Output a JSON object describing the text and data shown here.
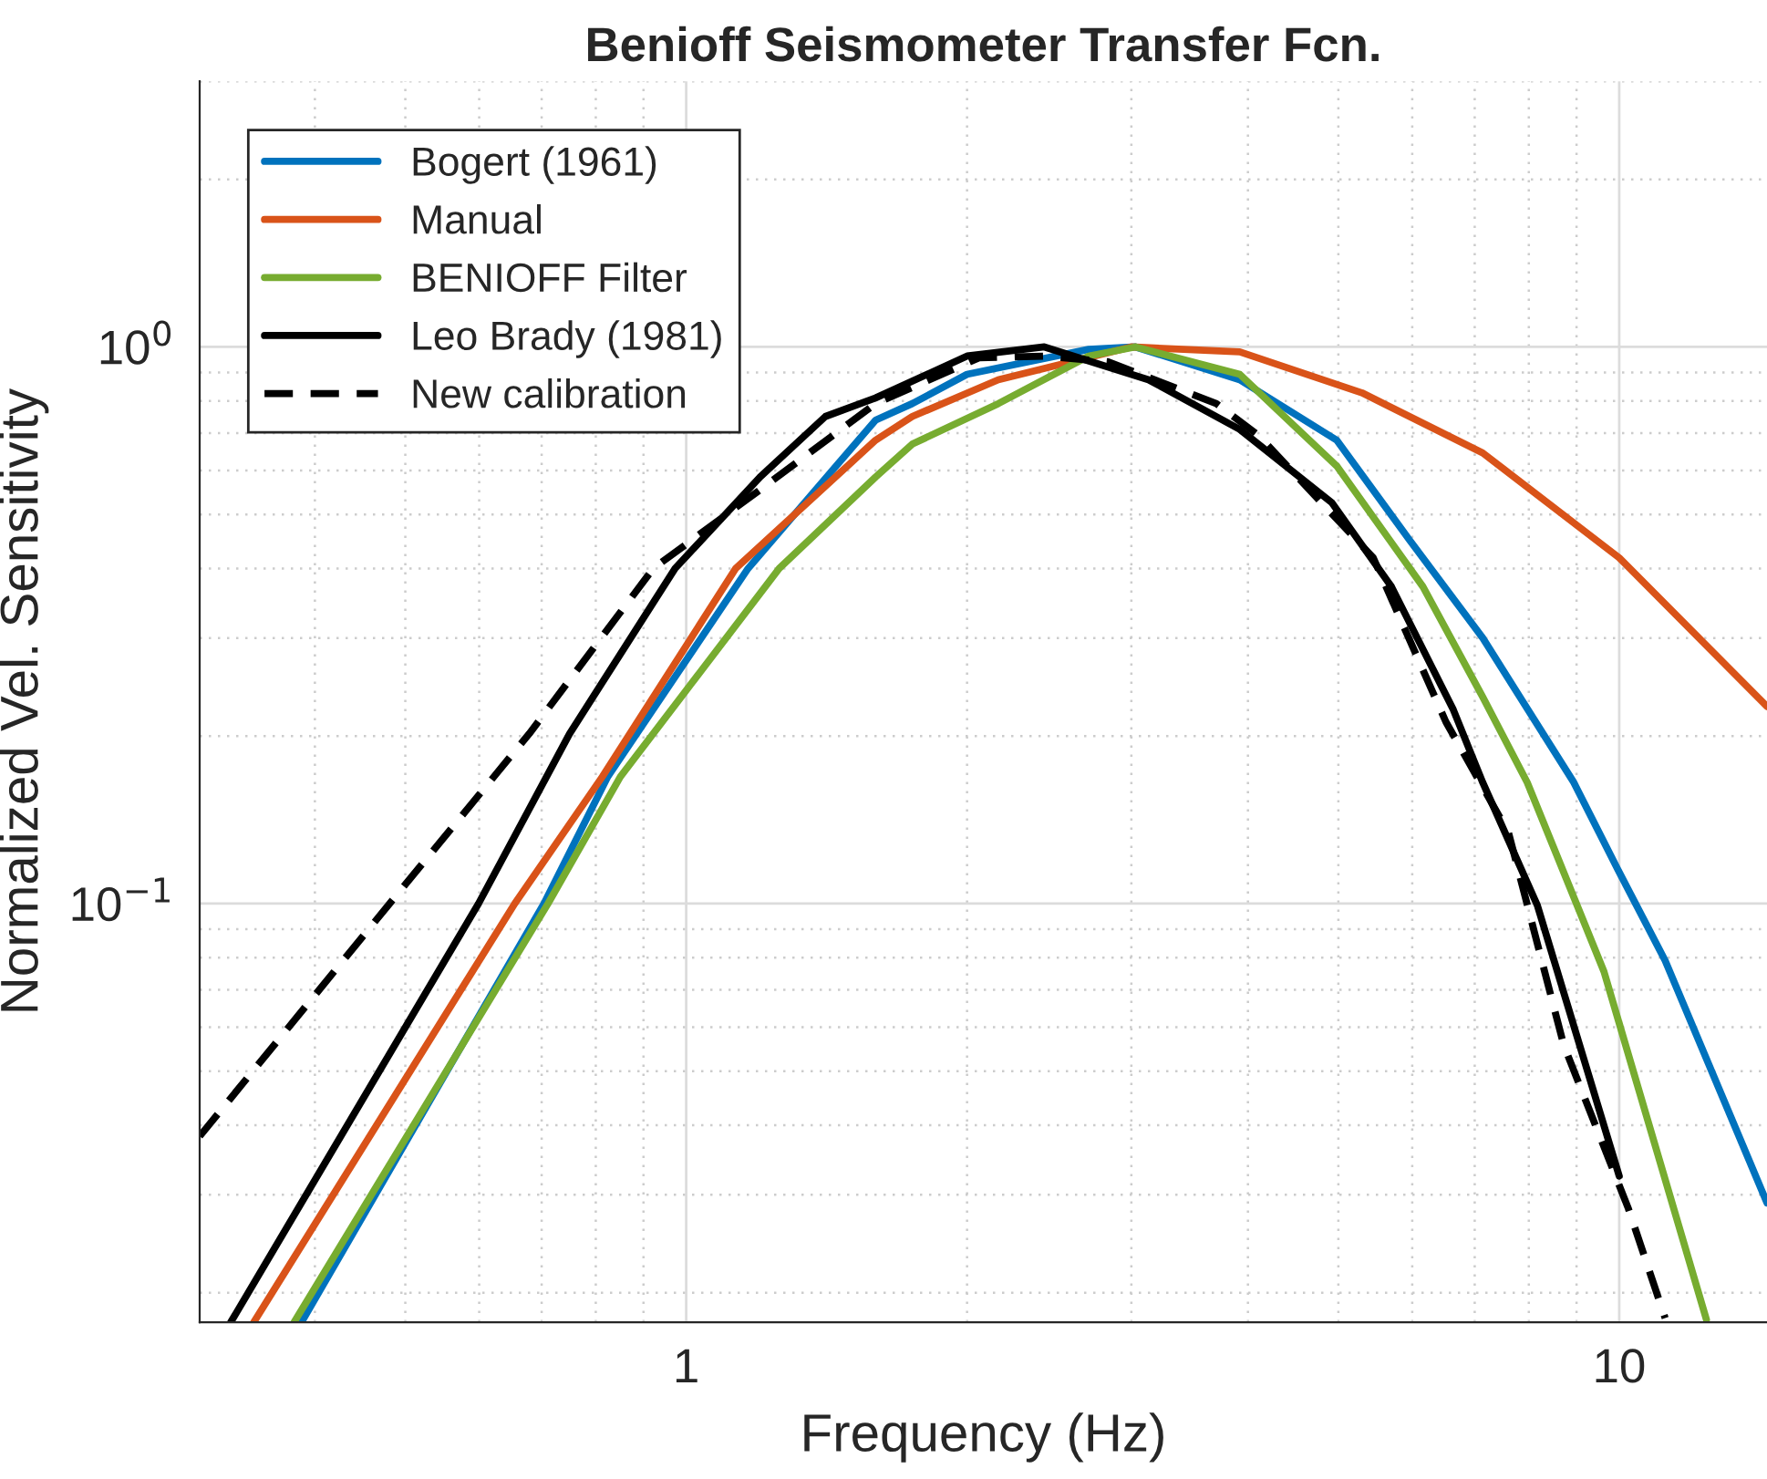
{
  "chart_data": {
    "type": "line",
    "title": "Benioff Seismometer Transfer Fcn.",
    "xlabel": "Frequency (Hz)",
    "ylabel": "Normalized Vel. Sensitivity",
    "log": "xy",
    "grid": true,
    "legend": "top left",
    "xlim": [
      0.301,
      14.4
    ],
    "ylim": [
      0.0177,
      3.0
    ],
    "xticks": [
      1,
      10
    ],
    "yticks": [
      {
        "value": 0.1,
        "label": "10$^{−1}$"
      },
      {
        "value": 1,
        "label": "10$^{0}$"
      }
    ],
    "series": [
      {
        "name": "Bogert (1961)",
        "color": "#0072bd",
        "x": [
          0.387,
          0.704,
          0.824,
          1.165,
          1.596,
          1.747,
          2.0,
          2.7,
          3.03,
          3.92,
          4.98,
          5.96,
          7.14,
          8.94,
          9.97,
          11.2,
          14.4
        ],
        "values": [
          0.0177,
          0.1,
          0.169,
          0.4,
          0.739,
          0.791,
          0.893,
          0.99,
          1.0,
          0.873,
          0.68,
          0.45,
          0.3,
          0.165,
          0.115,
          0.079,
          0.029
        ]
      },
      {
        "name": "Manual",
        "color": "#d95319",
        "x": [
          0.344,
          0.655,
          0.813,
          1.13,
          1.596,
          1.747,
          2.16,
          3.0,
          3.92,
          5.3,
          7.14,
          10.0,
          14.4
        ],
        "values": [
          0.0177,
          0.1,
          0.169,
          0.4,
          0.68,
          0.75,
          0.873,
          1.0,
          0.98,
          0.827,
          0.645,
          0.418,
          0.226
        ]
      },
      {
        "name": "BENIOFF Filter",
        "color": "#77ac30",
        "x": [
          0.38,
          0.711,
          0.85,
          1.258,
          1.596,
          1.747,
          2.16,
          2.7,
          3.03,
          3.92,
          4.98,
          6.16,
          7.14,
          7.97,
          9.63,
          12.4
        ],
        "values": [
          0.0177,
          0.1,
          0.169,
          0.4,
          0.584,
          0.669,
          0.791,
          0.963,
          1.0,
          0.893,
          0.611,
          0.371,
          0.235,
          0.165,
          0.0755,
          0.0179
        ]
      },
      {
        "name": "Leo Brady (1981)",
        "color": "#000000",
        "x": [
          0.325,
          0.599,
          0.75,
          0.973,
          1.2,
          1.41,
          1.596,
          2.0,
          2.42,
          3.13,
          3.92,
          4.92,
          5.7,
          6.64,
          7.14,
          8.17,
          10.0
        ],
        "values": [
          0.0177,
          0.1,
          0.202,
          0.4,
          0.584,
          0.75,
          0.81,
          0.963,
          1.0,
          0.873,
          0.711,
          0.525,
          0.371,
          0.223,
          0.165,
          0.0993,
          0.0324
        ]
      },
      {
        "name": "New calibration",
        "color": "#000000",
        "line_style": "dashed",
        "x": [
          0.301,
          0.481,
          0.679,
          0.922,
          1.2,
          1.596,
          2.06,
          2.42,
          2.83,
          3.7,
          4.1,
          5.45,
          6.52,
          7.61,
          8.72,
          10.23,
          11.2
        ],
        "values": [
          0.0382,
          0.1,
          0.202,
          0.4,
          0.554,
          0.791,
          0.956,
          0.963,
          0.941,
          0.791,
          0.695,
          0.418,
          0.212,
          0.134,
          0.0557,
          0.0283,
          0.018
        ]
      }
    ]
  }
}
